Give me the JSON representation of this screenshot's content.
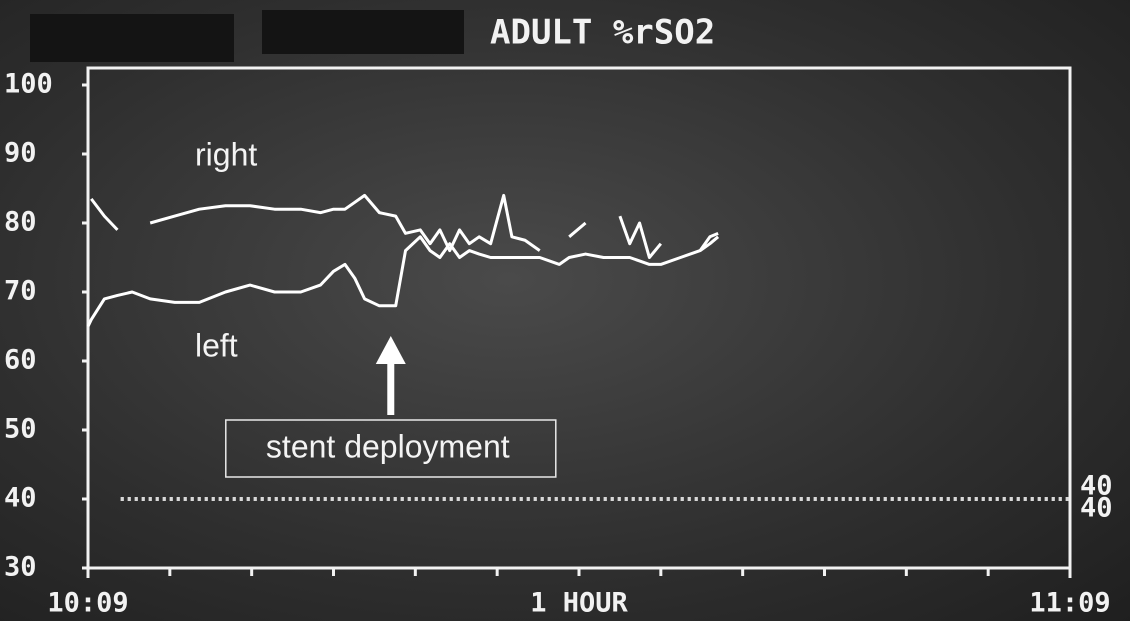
{
  "chart_data": {
    "type": "line",
    "title": "ADULT %rSO2",
    "xlabel": "1 HOUR",
    "x": [
      0,
      0.2,
      1.0,
      1.8,
      2.7,
      3.8,
      5.3,
      6.8,
      8.4,
      9.9,
      11.4,
      13.0,
      14.2,
      15.0,
      15.7,
      16.3,
      16.9,
      17.8,
      18.8,
      19.4,
      20.3,
      20.9,
      21.5,
      22.1,
      22.7,
      23.3,
      23.9,
      24.6,
      25.4,
      25.9,
      26.7,
      27.6,
      28.8,
      29.4,
      30.4,
      31.5,
      32.5,
      33.1,
      33.7,
      34.3,
      35.0,
      36.2,
      37.4,
      38.0,
      38.5
    ],
    "series": [
      {
        "name": "right",
        "color": "#ffffff",
        "values": [
          null,
          83.5,
          81,
          79,
          null,
          80,
          81,
          82,
          82.5,
          82.5,
          82,
          82,
          81.5,
          82,
          82,
          83,
          84,
          81.5,
          81,
          78.5,
          79,
          77,
          79,
          76,
          79,
          77,
          78,
          77,
          84,
          78,
          77.5,
          76,
          null,
          78,
          80,
          null,
          81,
          77,
          80,
          75,
          77,
          null,
          76,
          78,
          78.5
        ]
      },
      {
        "name": "left",
        "color": "#ffffff",
        "values": [
          65,
          66,
          69,
          69.5,
          70,
          69,
          68.5,
          68.5,
          70,
          71,
          70,
          70,
          71,
          73,
          74,
          72,
          69,
          68,
          68,
          76,
          78,
          76,
          75,
          77,
          75,
          76,
          75.5,
          75,
          75,
          75,
          75,
          75,
          74,
          75,
          75.5,
          75,
          75,
          75,
          74.5,
          74,
          74,
          75,
          76,
          77,
          78
        ]
      }
    ],
    "xlim": [
      0,
      60
    ],
    "xticks": [
      {
        "value": 0,
        "label": "10:09"
      },
      {
        "value": 60,
        "label": "11:09"
      }
    ],
    "x_minor_ticks": [
      5,
      10,
      15,
      20,
      25,
      30,
      35,
      40,
      45,
      50,
      55
    ],
    "ylim": [
      30,
      100
    ],
    "yticks": [
      30,
      40,
      50,
      60,
      70,
      80,
      90,
      100
    ],
    "thresholds": [
      40,
      40
    ],
    "annotation": {
      "text": "stent deployment",
      "x": 18.5
    }
  }
}
